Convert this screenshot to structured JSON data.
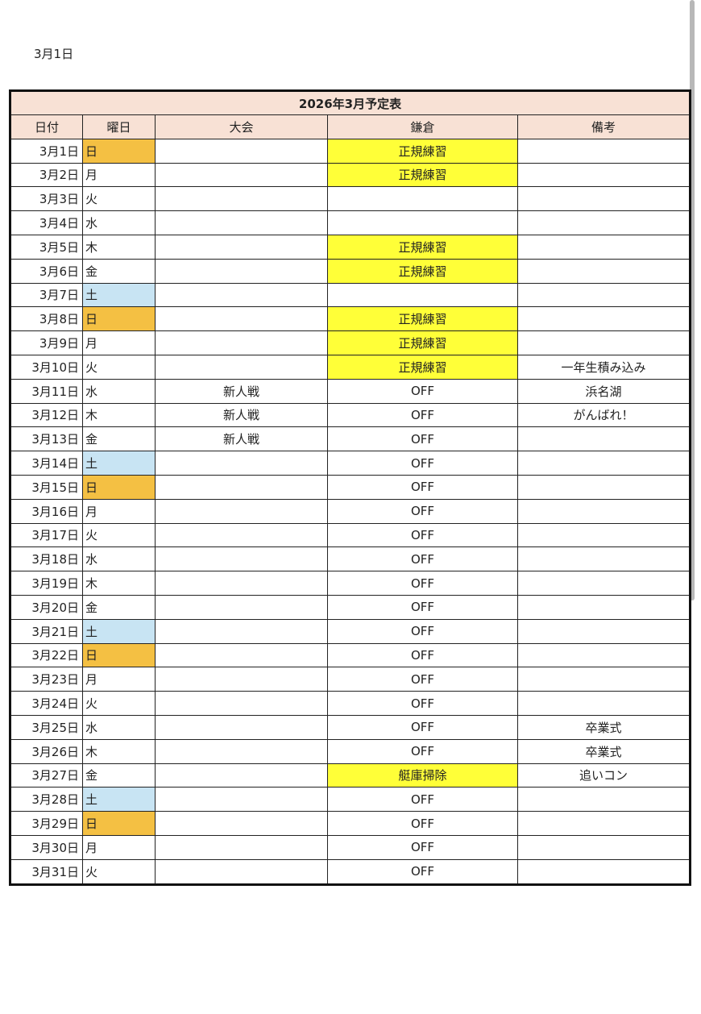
{
  "top_date": "3月1日",
  "table": {
    "title": "2026年3月予定表",
    "headers": [
      "日付",
      "曜日",
      "大会",
      "鎌倉",
      "備考"
    ],
    "colors": {
      "sunday": "#f4c043",
      "saturday": "#c8e4f3",
      "highlight": "#ffff38",
      "header": "#f8e1d5"
    },
    "rows": [
      {
        "date": "3月1日",
        "wd": "日",
        "taikai": "",
        "kamakura": "正規練習",
        "kamakura_hl": true,
        "note": ""
      },
      {
        "date": "3月2日",
        "wd": "月",
        "taikai": "",
        "kamakura": "正規練習",
        "kamakura_hl": true,
        "note": ""
      },
      {
        "date": "3月3日",
        "wd": "火",
        "taikai": "",
        "kamakura": "",
        "kamakura_hl": false,
        "note": ""
      },
      {
        "date": "3月4日",
        "wd": "水",
        "taikai": "",
        "kamakura": "",
        "kamakura_hl": false,
        "note": ""
      },
      {
        "date": "3月5日",
        "wd": "木",
        "taikai": "",
        "kamakura": "正規練習",
        "kamakura_hl": true,
        "note": ""
      },
      {
        "date": "3月6日",
        "wd": "金",
        "taikai": "",
        "kamakura": "正規練習",
        "kamakura_hl": true,
        "note": ""
      },
      {
        "date": "3月7日",
        "wd": "土",
        "taikai": "",
        "kamakura": "",
        "kamakura_hl": false,
        "note": ""
      },
      {
        "date": "3月8日",
        "wd": "日",
        "taikai": "",
        "kamakura": "正規練習",
        "kamakura_hl": true,
        "note": ""
      },
      {
        "date": "3月9日",
        "wd": "月",
        "taikai": "",
        "kamakura": "正規練習",
        "kamakura_hl": true,
        "note": ""
      },
      {
        "date": "3月10日",
        "wd": "火",
        "taikai": "",
        "kamakura": "正規練習",
        "kamakura_hl": true,
        "note": "一年生積み込み"
      },
      {
        "date": "3月11日",
        "wd": "水",
        "taikai": "新人戦",
        "kamakura": "OFF",
        "kamakura_hl": false,
        "note": "浜名湖"
      },
      {
        "date": "3月12日",
        "wd": "木",
        "taikai": "新人戦",
        "kamakura": "OFF",
        "kamakura_hl": false,
        "note": "がんばれ！"
      },
      {
        "date": "3月13日",
        "wd": "金",
        "taikai": "新人戦",
        "kamakura": "OFF",
        "kamakura_hl": false,
        "note": ""
      },
      {
        "date": "3月14日",
        "wd": "土",
        "taikai": "",
        "kamakura": "OFF",
        "kamakura_hl": false,
        "note": ""
      },
      {
        "date": "3月15日",
        "wd": "日",
        "taikai": "",
        "kamakura": "OFF",
        "kamakura_hl": false,
        "note": ""
      },
      {
        "date": "3月16日",
        "wd": "月",
        "taikai": "",
        "kamakura": "OFF",
        "kamakura_hl": false,
        "note": ""
      },
      {
        "date": "3月17日",
        "wd": "火",
        "taikai": "",
        "kamakura": "OFF",
        "kamakura_hl": false,
        "note": ""
      },
      {
        "date": "3月18日",
        "wd": "水",
        "taikai": "",
        "kamakura": "OFF",
        "kamakura_hl": false,
        "note": ""
      },
      {
        "date": "3月19日",
        "wd": "木",
        "taikai": "",
        "kamakura": "OFF",
        "kamakura_hl": false,
        "note": ""
      },
      {
        "date": "3月20日",
        "wd": "金",
        "taikai": "",
        "kamakura": "OFF",
        "kamakura_hl": false,
        "note": ""
      },
      {
        "date": "3月21日",
        "wd": "土",
        "taikai": "",
        "kamakura": "OFF",
        "kamakura_hl": false,
        "note": ""
      },
      {
        "date": "3月22日",
        "wd": "日",
        "taikai": "",
        "kamakura": "OFF",
        "kamakura_hl": false,
        "note": ""
      },
      {
        "date": "3月23日",
        "wd": "月",
        "taikai": "",
        "kamakura": "OFF",
        "kamakura_hl": false,
        "note": ""
      },
      {
        "date": "3月24日",
        "wd": "火",
        "taikai": "",
        "kamakura": "OFF",
        "kamakura_hl": false,
        "note": ""
      },
      {
        "date": "3月25日",
        "wd": "水",
        "taikai": "",
        "kamakura": "OFF",
        "kamakura_hl": false,
        "note": "卒業式"
      },
      {
        "date": "3月26日",
        "wd": "木",
        "taikai": "",
        "kamakura": "OFF",
        "kamakura_hl": false,
        "note": "卒業式"
      },
      {
        "date": "3月27日",
        "wd": "金",
        "taikai": "",
        "kamakura": "艇庫掃除",
        "kamakura_hl": true,
        "note": "追いコン"
      },
      {
        "date": "3月28日",
        "wd": "土",
        "taikai": "",
        "kamakura": "OFF",
        "kamakura_hl": false,
        "note": ""
      },
      {
        "date": "3月29日",
        "wd": "日",
        "taikai": "",
        "kamakura": "OFF",
        "kamakura_hl": false,
        "note": ""
      },
      {
        "date": "3月30日",
        "wd": "月",
        "taikai": "",
        "kamakura": "OFF",
        "kamakura_hl": false,
        "note": ""
      },
      {
        "date": "3月31日",
        "wd": "火",
        "taikai": "",
        "kamakura": "OFF",
        "kamakura_hl": false,
        "note": ""
      }
    ]
  }
}
